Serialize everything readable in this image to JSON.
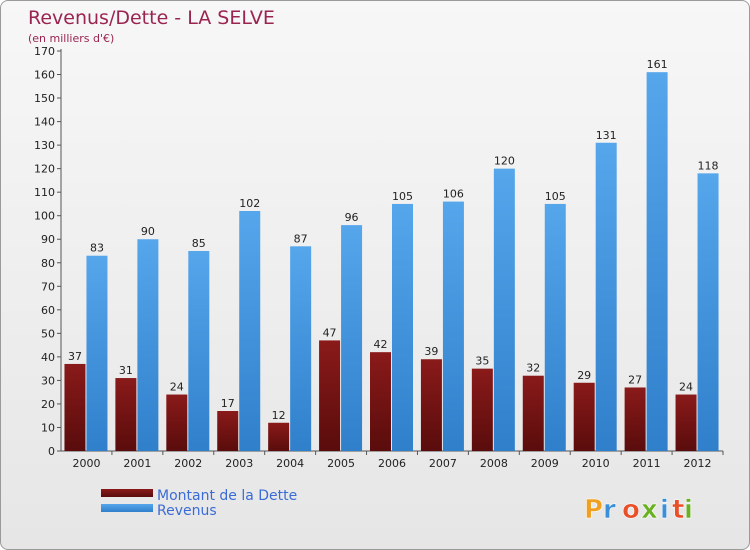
{
  "chart_data": {
    "type": "bar",
    "title": "Revenus/Dette - LA SELVE",
    "subtitle": "(en milliers d'€)",
    "categories": [
      "2000",
      "2001",
      "2002",
      "2003",
      "2004",
      "2005",
      "2006",
      "2007",
      "2008",
      "2009",
      "2010",
      "2011",
      "2012"
    ],
    "series": [
      {
        "name": "Montant de la Dette",
        "color": "#7a1414",
        "values": [
          37,
          31,
          24,
          17,
          12,
          47,
          42,
          39,
          35,
          32,
          29,
          27,
          24
        ]
      },
      {
        "name": "Revenus",
        "color": "#3d8fdb",
        "values": [
          83,
          90,
          85,
          102,
          87,
          96,
          105,
          106,
          120,
          105,
          131,
          161,
          118
        ]
      }
    ],
    "ylim": [
      0,
      170
    ],
    "ytick_step": 10,
    "grid": false,
    "legend_position": "bottom-left"
  },
  "brand": {
    "logo_text": "Proxiti"
  }
}
